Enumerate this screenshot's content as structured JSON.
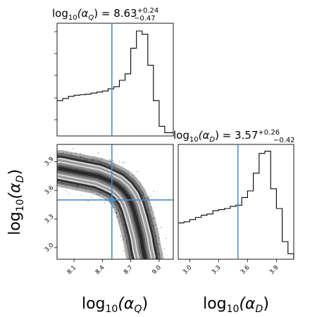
{
  "chart_data": {
    "type": "corner",
    "truth": {
      "log10_alpha_Q": 8.5,
      "log10_alpha_D": 3.5
    },
    "truth_color": "#4c8cc4",
    "panels": [
      {
        "id": "hist_alpha_Q",
        "type": "histogram",
        "title": {
          "prefix": "log",
          "sub": "10",
          "var": "(α",
          "vsub": "Q",
          "rest": ") = 8.63",
          "plus": "+0.24",
          "minus": "−0.47"
        },
        "xlim": [
          7.92,
          9.15
        ],
        "bin_edges": [
          7.92,
          7.98,
          8.04,
          8.1,
          8.16,
          8.22,
          8.28,
          8.34,
          8.4,
          8.46,
          8.52,
          8.58,
          8.64,
          8.7,
          8.76,
          8.82,
          8.88,
          8.94,
          9.0,
          9.06,
          9.15
        ],
        "values": [
          0.33,
          0.35,
          0.37,
          0.38,
          0.385,
          0.39,
          0.4,
          0.41,
          0.42,
          0.44,
          0.46,
          0.52,
          0.58,
          0.82,
          0.98,
          0.95,
          0.66,
          0.33,
          0.09,
          0.03
        ]
      },
      {
        "id": "hist_alpha_D",
        "type": "histogram",
        "title": {
          "prefix": "log",
          "sub": "10",
          "var": "(α",
          "vsub": "D",
          "rest": ") = 3.57",
          "plus": "+0.26",
          "minus": "−0.42"
        },
        "xlim": [
          2.88,
          4.08
        ],
        "bin_edges": [
          2.88,
          2.94,
          3.0,
          3.06,
          3.12,
          3.18,
          3.24,
          3.3,
          3.36,
          3.42,
          3.48,
          3.54,
          3.6,
          3.66,
          3.72,
          3.78,
          3.84,
          3.9,
          3.96,
          4.02,
          4.08
        ],
        "values": [
          0.33,
          0.34,
          0.36,
          0.38,
          0.4,
          0.41,
          0.44,
          0.45,
          0.46,
          0.48,
          0.49,
          0.56,
          0.62,
          0.78,
          0.96,
          0.98,
          0.64,
          0.46,
          0.16,
          0.05
        ]
      },
      {
        "id": "joint_alpha_Q_alpha_D",
        "type": "scatter_contour",
        "xlim": [
          7.92,
          9.15
        ],
        "ylim": [
          2.88,
          4.08
        ],
        "ridge": [
          {
            "x": 7.95,
            "y": 3.83
          },
          {
            "x": 8.05,
            "y": 3.81
          },
          {
            "x": 8.15,
            "y": 3.79
          },
          {
            "x": 8.25,
            "y": 3.77
          },
          {
            "x": 8.35,
            "y": 3.75
          },
          {
            "x": 8.45,
            "y": 3.71
          },
          {
            "x": 8.55,
            "y": 3.66
          },
          {
            "x": 8.62,
            "y": 3.6
          },
          {
            "x": 8.68,
            "y": 3.52
          },
          {
            "x": 8.72,
            "y": 3.43
          },
          {
            "x": 8.75,
            "y": 3.33
          },
          {
            "x": 8.78,
            "y": 3.22
          },
          {
            "x": 8.81,
            "y": 3.1
          },
          {
            "x": 8.83,
            "y": 2.98
          },
          {
            "x": 8.85,
            "y": 2.9
          }
        ]
      }
    ],
    "x_ticks": {
      "alpha_Q": [
        "8.1",
        "8.4",
        "8.7",
        "9.0"
      ],
      "alpha_D": [
        "3.0",
        "3.3",
        "3.6",
        "3.9"
      ]
    },
    "y_ticks": {
      "alpha_D": [
        "3.9",
        "3.6",
        "3.3",
        "3.0"
      ]
    },
    "axis_labels": {
      "x_alpha_Q": {
        "prefix": "log",
        "sub": "10",
        "var": "(α",
        "vsub": "Q",
        "rest": ")"
      },
      "x_alpha_D": {
        "prefix": "log",
        "sub": "10",
        "var": "(α",
        "vsub": "D",
        "rest": ")"
      },
      "y_alpha_D": {
        "prefix": "log",
        "sub": "10",
        "var": "(α",
        "vsub": "D",
        "rest": ")"
      }
    }
  }
}
